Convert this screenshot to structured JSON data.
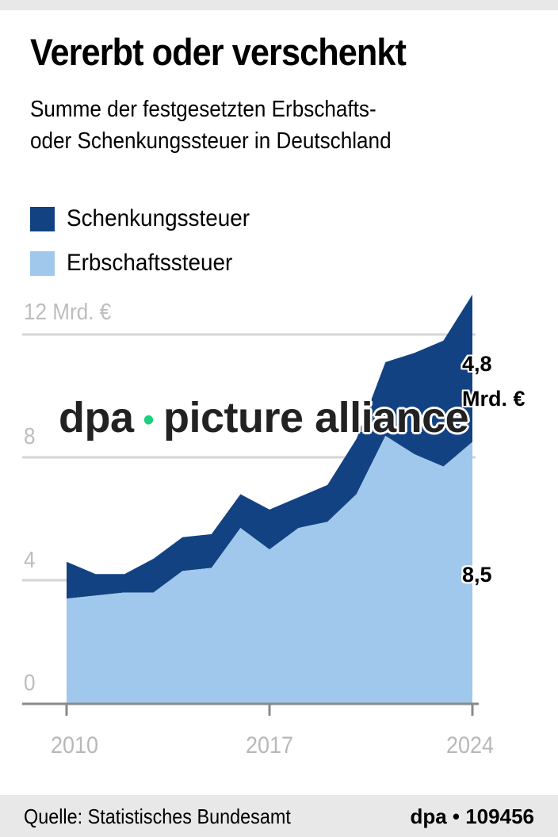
{
  "header": {
    "title": "Vererbt oder verschenkt",
    "subtitle_line1": "Summe der festgesetzten Erbschafts-",
    "subtitle_line2": "oder Schenkungssteuer in Deutschland"
  },
  "legend": [
    {
      "label": "Schenkungssteuer",
      "color": "#134283"
    },
    {
      "label": "Erbschaftssteuer",
      "color": "#9fc8ec"
    }
  ],
  "axis": {
    "y_ticks": [
      {
        "value": 0,
        "label": "0"
      },
      {
        "value": 4,
        "label": "4"
      },
      {
        "value": 8,
        "label": "8"
      },
      {
        "value": 12,
        "label": "12 Mrd. €"
      }
    ],
    "x_ticks": [
      {
        "value": 2010,
        "label": "2010"
      },
      {
        "value": 2017,
        "label": "2017"
      },
      {
        "value": 2024,
        "label": "2024"
      }
    ]
  },
  "annotations": {
    "schenkung_value": "4,8",
    "schenkung_unit": "Mrd. €",
    "erbschaft_value": "8,5"
  },
  "watermark": {
    "left": "dpa",
    "dot": "•",
    "right": "picture alliance"
  },
  "footer": {
    "source": "Quelle: Statistisches Bundesamt",
    "credit": "dpa • 109456"
  },
  "colors": {
    "schenkung": "#134283",
    "erbschaft": "#9fc8ec",
    "grid": "#d6d6d6",
    "axis": "#8a8a8a",
    "tick_label": "#bdbdbd",
    "watermark_dot": "#19d27d"
  },
  "chart_data": {
    "type": "area",
    "stacked": true,
    "title": "Vererbt oder verschenkt",
    "subtitle": "Summe der festgesetzten Erbschafts- oder Schenkungssteuer in Deutschland",
    "xlabel": "",
    "ylabel": "Mrd. €",
    "x": [
      2010,
      2011,
      2012,
      2013,
      2014,
      2015,
      2016,
      2017,
      2018,
      2019,
      2020,
      2021,
      2022,
      2023,
      2024
    ],
    "series": [
      {
        "name": "Erbschaftssteuer",
        "color": "#9fc8ec",
        "values": [
          3.4,
          3.5,
          3.6,
          3.6,
          4.3,
          4.4,
          5.7,
          5.0,
          5.7,
          5.9,
          6.8,
          8.7,
          8.1,
          7.7,
          8.5
        ]
      },
      {
        "name": "Schenkungssteuer",
        "color": "#134283",
        "values": [
          1.2,
          0.7,
          0.6,
          1.1,
          1.1,
          1.1,
          1.1,
          1.3,
          1.0,
          1.2,
          1.8,
          2.4,
          3.3,
          4.1,
          4.8
        ]
      }
    ],
    "ylim": [
      0,
      12
    ],
    "y_ticks": [
      0,
      4,
      8,
      12
    ],
    "x_ticks": [
      2010,
      2017,
      2024
    ],
    "grid": true,
    "legend_position": "top-left",
    "annotations": [
      {
        "text": "4,8 Mrd. €",
        "series": "Schenkungssteuer",
        "x": 2024
      },
      {
        "text": "8,5",
        "series": "Erbschaftssteuer",
        "x": 2024
      }
    ],
    "source": "Quelle: Statistisches Bundesamt"
  }
}
